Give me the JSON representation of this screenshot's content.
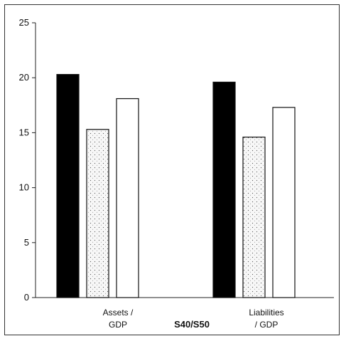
{
  "chart_data": {
    "type": "bar",
    "title": "",
    "xlabel": "S40/S50",
    "ylabel": "",
    "ylim": [
      0,
      25
    ],
    "yticks": [
      0,
      5,
      10,
      15,
      20,
      25
    ],
    "categories": [
      {
        "lines": [
          "Assets /",
          "GDP"
        ]
      },
      {
        "lines": [
          "Liabilities",
          "/ GDP"
        ]
      }
    ],
    "series": [
      {
        "fill": "#000000",
        "pattern": "solid",
        "values": [
          20.3,
          19.6
        ]
      },
      {
        "fill": "#f4f4f4",
        "pattern": "dotted",
        "values": [
          15.3,
          14.6
        ]
      },
      {
        "fill": "#ffffff",
        "pattern": "none",
        "values": [
          18.1,
          17.3
        ]
      }
    ],
    "grid": false,
    "legend": "none"
  }
}
